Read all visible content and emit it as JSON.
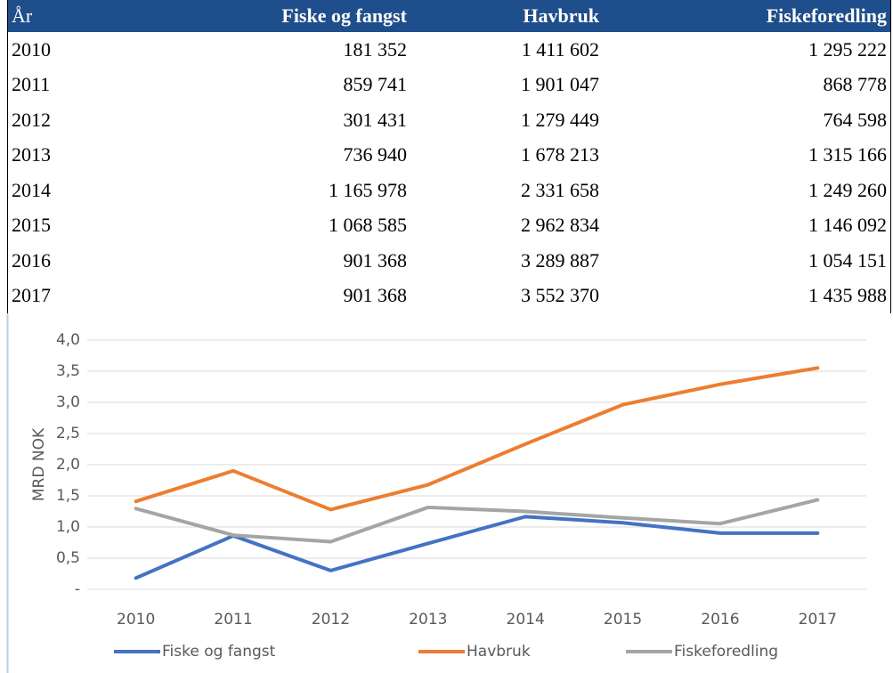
{
  "table": {
    "header": [
      "År",
      "Fiske og fangst",
      "Havbruk",
      "Fiskeforedling"
    ],
    "rows": [
      [
        "2010",
        "181 352",
        "1 411 602",
        "1 295 222"
      ],
      [
        "2011",
        "859 741",
        "1 901 047",
        "868 778"
      ],
      [
        "2012",
        "301 431",
        "1 279 449",
        "764 598"
      ],
      [
        "2013",
        "736 940",
        "1 678 213",
        "1 315 166"
      ],
      [
        "2014",
        "1 165 978",
        "2 331 658",
        "1 249 260"
      ],
      [
        "2015",
        "1 068 585",
        "2 962 834",
        "1 146 092"
      ],
      [
        "2016",
        "901 368",
        "3 289 887",
        "1 054 151"
      ],
      [
        "2017",
        "901 368",
        "3 552 370",
        "1 435 988"
      ]
    ]
  },
  "chart_data": {
    "type": "line",
    "y_label": "MRD NOK",
    "categories": [
      "2010",
      "2011",
      "2012",
      "2013",
      "2014",
      "2015",
      "2016",
      "2017"
    ],
    "series": [
      {
        "name": "Fiske og fangst",
        "color": "#4472c4",
        "values": [
          0.181352,
          0.859741,
          0.301431,
          0.73694,
          1.165978,
          1.068585,
          0.901368,
          0.901368
        ]
      },
      {
        "name": "Havbruk",
        "color": "#ed7d31",
        "values": [
          1.411602,
          1.901047,
          1.279449,
          1.678213,
          2.331658,
          2.962834,
          3.289887,
          3.55237
        ]
      },
      {
        "name": "Fiskeforedling",
        "color": "#a5a5a5",
        "values": [
          1.295222,
          0.868778,
          0.764598,
          1.315166,
          1.24926,
          1.146092,
          1.054151,
          1.435988
        ]
      }
    ],
    "ylim": [
      0,
      4
    ],
    "yticks": [
      {
        "value": 0,
        "label": "-"
      },
      {
        "value": 0.5,
        "label": "0,5"
      },
      {
        "value": 1,
        "label": "1,0"
      },
      {
        "value": 1.5,
        "label": "1,5"
      },
      {
        "value": 2,
        "label": "2,0"
      },
      {
        "value": 2.5,
        "label": "2,5"
      },
      {
        "value": 3,
        "label": "3,0"
      },
      {
        "value": 3.5,
        "label": "3,5"
      },
      {
        "value": 4,
        "label": "4,0"
      }
    ],
    "grid": true,
    "legend": "bottom"
  }
}
